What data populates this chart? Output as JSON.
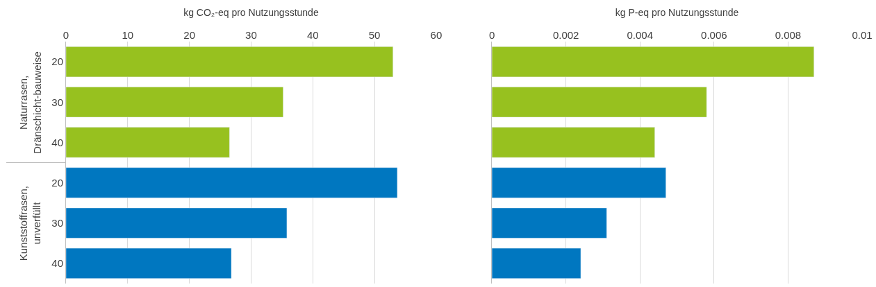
{
  "chart_data": [
    {
      "type": "bar",
      "orientation": "horizontal",
      "xlabel": "kg CO₂-eq pro Nutzungsstunde",
      "categories": [
        "20",
        "30",
        "40",
        "20",
        "30",
        "40"
      ],
      "values": [
        53.0,
        35.2,
        26.5,
        53.7,
        35.8,
        26.8
      ],
      "colors": [
        "#97c11f",
        "#97c11f",
        "#97c11f",
        "#0077c0",
        "#0077c0",
        "#0077c0"
      ],
      "annotations": [
        "Naturrasen,\nDränschicht-bauweise",
        "Kunststoffrasen,\nunverfüllt"
      ],
      "xlim": [
        0,
        60
      ],
      "xticks": [
        0,
        10,
        20,
        30,
        40,
        50,
        60
      ],
      "grid": "x"
    },
    {
      "type": "bar",
      "orientation": "horizontal",
      "xlabel": "kg P-eq pro Nutzungsstunde",
      "categories": [
        "20",
        "30",
        "40",
        "20",
        "30",
        "40"
      ],
      "values": [
        0.0087,
        0.0058,
        0.0044,
        0.0047,
        0.0031,
        0.0024
      ],
      "colors": [
        "#97c11f",
        "#97c11f",
        "#97c11f",
        "#0077c0",
        "#0077c0",
        "#0077c0"
      ],
      "xlim": [
        0,
        0.01
      ],
      "xticks": [
        0,
        0.002,
        0.004,
        0.006,
        0.008,
        0.01
      ],
      "grid": "x",
      "tick_labels": "x"
    }
  ]
}
